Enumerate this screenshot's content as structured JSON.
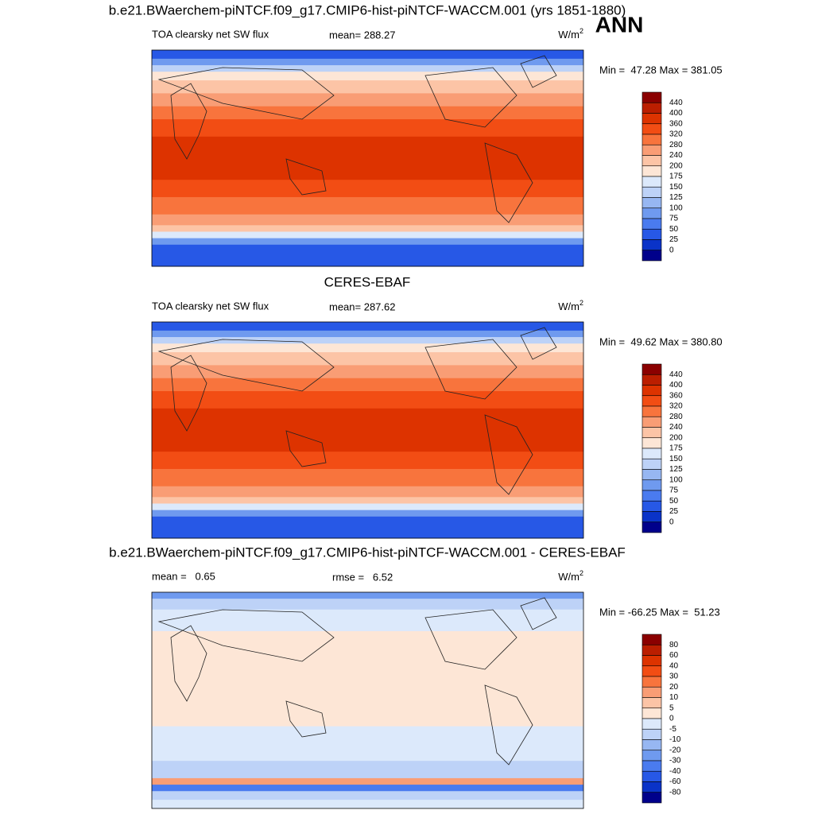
{
  "header": {
    "title": "b.e21.BWaerchem-piNTCF.f09_g17.CMIP6-hist-piNTCF-WACCM.001 (yrs 1851-1880)",
    "season": "ANN"
  },
  "panels": [
    {
      "left": "TOA clearsky net SW flux",
      "center": "mean= 288.27",
      "units": "W/m",
      "units_exp": "2",
      "minmax": "Min =  47.28 Max = 381.05",
      "colorbar": {
        "labels": [
          440,
          400,
          360,
          320,
          280,
          240,
          200,
          175,
          150,
          125,
          100,
          75,
          50,
          25,
          0
        ],
        "colors": [
          "#8b0000",
          "#bb1e00",
          "#dd3300",
          "#f24d14",
          "#f8743d",
          "#f99d75",
          "#fcc4a6",
          "#fde6d6",
          "#dce9fb",
          "#bdd2f7",
          "#97b7f2",
          "#6f9aef",
          "#4a7bef",
          "#2758e6",
          "#0a33c8",
          "#00008b"
        ]
      }
    },
    {
      "title": "CERES-EBAF",
      "left": "TOA clearsky net SW flux",
      "center": "mean= 287.62",
      "units": "W/m",
      "units_exp": "2",
      "minmax": "Min =  49.62 Max = 380.80",
      "colorbar": {
        "labels": [
          440,
          400,
          360,
          320,
          280,
          240,
          200,
          175,
          150,
          125,
          100,
          75,
          50,
          25,
          0
        ],
        "colors": [
          "#8b0000",
          "#bb1e00",
          "#dd3300",
          "#f24d14",
          "#f8743d",
          "#f99d75",
          "#fcc4a6",
          "#fde6d6",
          "#dce9fb",
          "#bdd2f7",
          "#97b7f2",
          "#6f9aef",
          "#4a7bef",
          "#2758e6",
          "#0a33c8",
          "#00008b"
        ]
      }
    },
    {
      "title": "b.e21.BWaerchem-piNTCF.f09_g17.CMIP6-hist-piNTCF-WACCM.001 - CERES-EBAF",
      "left": "mean =   0.65",
      "center": "rmse =   6.52",
      "units": "W/m",
      "units_exp": "2",
      "minmax": "Min = -66.25 Max =  51.23",
      "colorbar": {
        "labels": [
          80,
          60,
          40,
          30,
          20,
          10,
          5,
          0,
          -5,
          -10,
          -20,
          -30,
          -40,
          -60,
          -80
        ],
        "colors": [
          "#8b0000",
          "#bb1e00",
          "#dd3300",
          "#f24d14",
          "#f8743d",
          "#f99d75",
          "#fcc4a6",
          "#fde6d6",
          "#dce9fb",
          "#bdd2f7",
          "#97b7f2",
          "#6f9aef",
          "#4a7bef",
          "#2758e6",
          "#0a33c8",
          "#00008b"
        ]
      }
    }
  ]
}
